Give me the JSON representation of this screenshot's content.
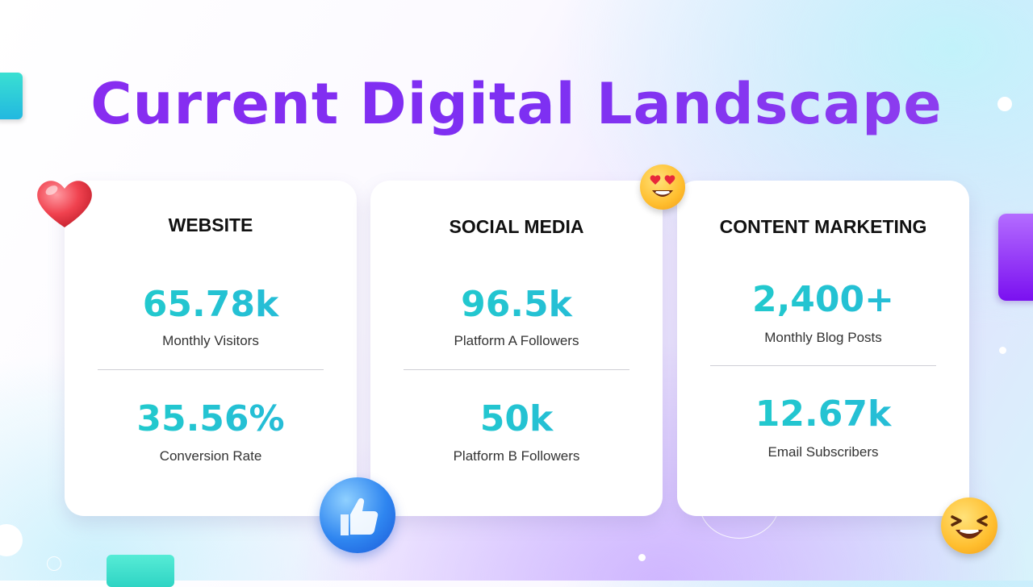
{
  "title": "Current Digital Landscape",
  "cards": [
    {
      "title": "WEBSITE",
      "stats": [
        {
          "value": "65.78k",
          "label": "Monthly Visitors"
        },
        {
          "value": "35.56%",
          "label": "Conversion Rate"
        }
      ]
    },
    {
      "title": "SOCIAL MEDIA",
      "stats": [
        {
          "value": "96.5k",
          "label": "Platform A Followers"
        },
        {
          "value": "50k",
          "label": "Platform B Followers"
        }
      ]
    },
    {
      "title": "CONTENT MARKETING",
      "stats": [
        {
          "value": "2,400+",
          "label": "Monthly Blog Posts"
        },
        {
          "value": "12.67k",
          "label": "Email Subscribers"
        }
      ]
    }
  ],
  "decorations": [
    "heart-icon",
    "heart-eyes-emoji-icon",
    "thumbs-up-icon",
    "laughing-emoji-icon"
  ],
  "colors": {
    "title_gradient": [
      "#8a2cf0",
      "#9040ee"
    ],
    "value_gradient": [
      "#1fd0c8",
      "#28b6dc"
    ],
    "card_background": "#ffffff"
  }
}
